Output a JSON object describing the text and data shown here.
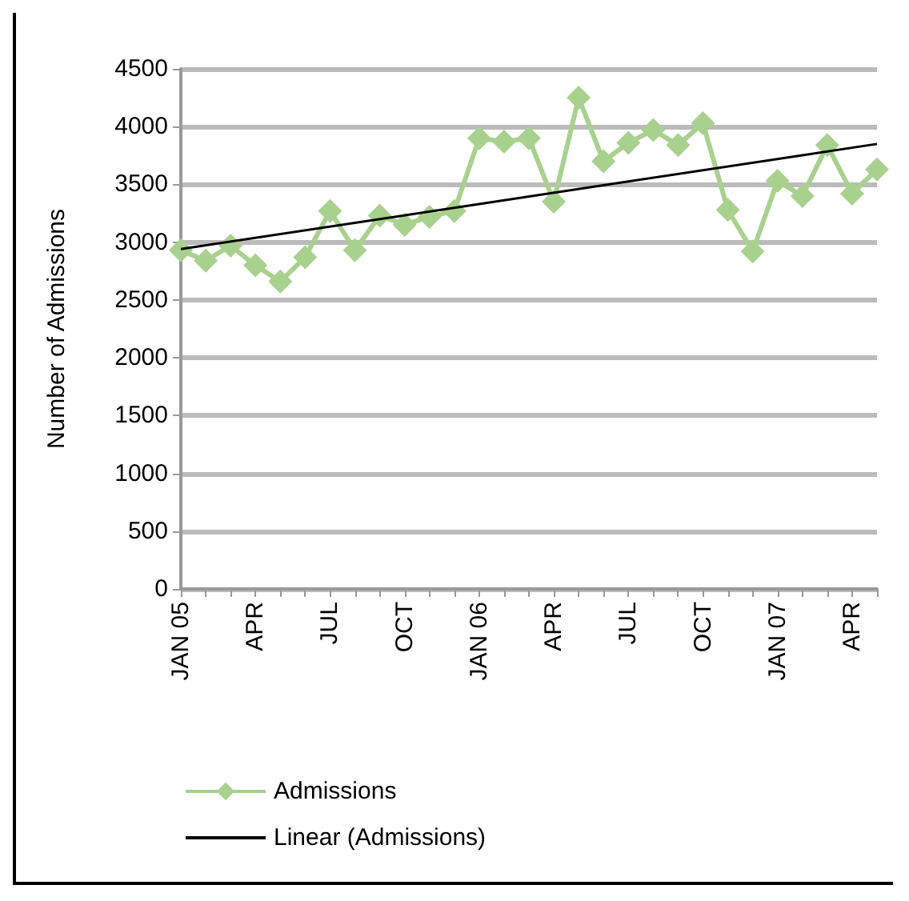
{
  "chart_data": {
    "type": "line",
    "ylabel": "Number of Admissions",
    "categories": [
      "JAN 05",
      null,
      null,
      "APR",
      null,
      null,
      "JUL",
      null,
      null,
      "OCT",
      null,
      null,
      "JAN 06",
      null,
      null,
      "APR",
      null,
      null,
      "JUL",
      null,
      null,
      "OCT",
      null,
      null,
      "JAN 07",
      null,
      null,
      "APR",
      null
    ],
    "series": [
      {
        "name": "Admissions",
        "color": "#a9d18e",
        "marker": "diamond",
        "values": [
          2930,
          2840,
          2970,
          2800,
          2660,
          2870,
          3270,
          2930,
          3230,
          3150,
          3220,
          3270,
          3900,
          3870,
          3900,
          3350,
          4250,
          3700,
          3860,
          3970,
          3840,
          4030,
          3280,
          2920,
          3530,
          3400,
          3840,
          3420,
          3630
        ]
      },
      {
        "name": "Linear (Admissions)",
        "color": "#000000",
        "marker": "none",
        "values": [
          2940,
          null,
          null,
          null,
          null,
          null,
          null,
          null,
          null,
          null,
          null,
          null,
          null,
          null,
          null,
          null,
          null,
          null,
          null,
          null,
          null,
          null,
          null,
          null,
          null,
          null,
          null,
          null,
          3850
        ]
      }
    ],
    "ylim": [
      0,
      4500
    ],
    "yticks": [
      0,
      500,
      1000,
      1500,
      2000,
      2500,
      3000,
      3500,
      4000,
      4500
    ],
    "grid": "y",
    "legend": "bottom left"
  }
}
